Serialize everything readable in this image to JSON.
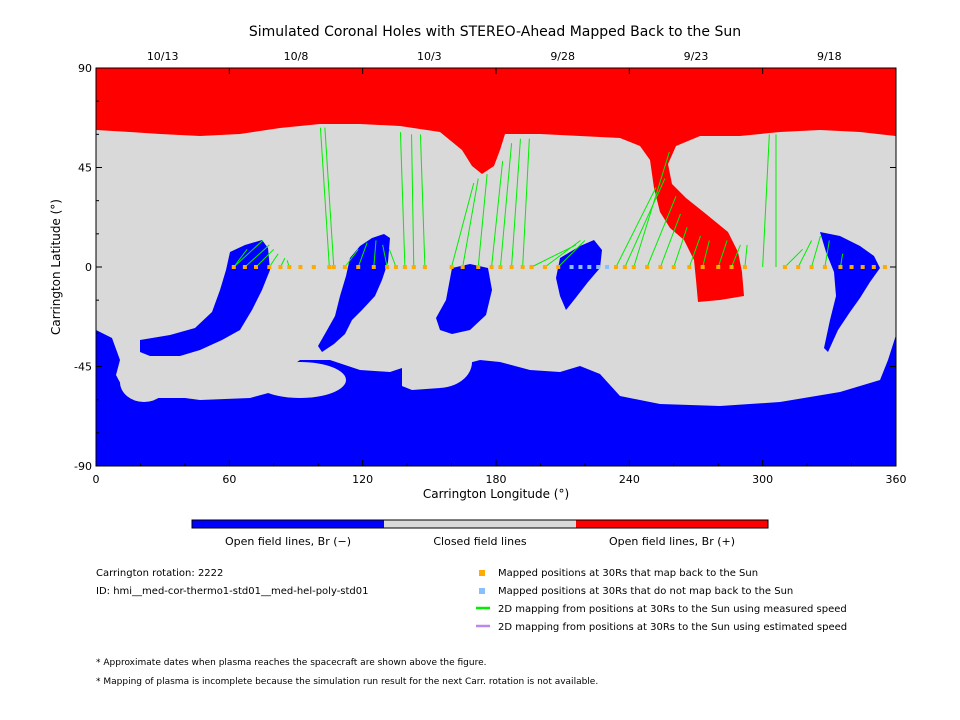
{
  "chart_data": {
    "type": "map",
    "title": "Simulated Coronal Holes with STEREO-Ahead Mapped Back to the Sun",
    "xlabel": "Carrington Longitude (°)",
    "ylabel": "Carrington Latitude (°)",
    "xlim": [
      0,
      360
    ],
    "ylim": [
      -90,
      90
    ],
    "x_ticks": [
      0,
      60,
      120,
      180,
      240,
      300,
      360
    ],
    "y_ticks": [
      -90,
      -45,
      0,
      45,
      90
    ],
    "top_dates": [
      {
        "label": "10/13",
        "lon": 30
      },
      {
        "label": "10/8",
        "lon": 90
      },
      {
        "label": "10/3",
        "lon": 150
      },
      {
        "label": "9/28",
        "lon": 210
      },
      {
        "label": "9/23",
        "lon": 270
      },
      {
        "label": "9/18",
        "lon": 330
      }
    ],
    "colors": {
      "negative_open": "#0000ff",
      "closed": "#d9d9d9",
      "positive_open": "#ff0000",
      "mapped_point": "#ffaa00",
      "unmapped_point": "#88c0ff",
      "measured_line": "#00ee00",
      "estimated_line": "#bb88ee"
    },
    "colorbar": [
      {
        "label": "Open field lines, Br (−)",
        "color": "#0000ff"
      },
      {
        "label": "Closed field lines",
        "color": "#d9d9d9"
      },
      {
        "label": "Open field lines, Br (+)",
        "color": "#ff0000"
      }
    ],
    "mapping_lines": [
      [
        62,
        0,
        68,
        8
      ],
      [
        62,
        0,
        75,
        12
      ],
      [
        67,
        0,
        78,
        10
      ],
      [
        72,
        0,
        80,
        8
      ],
      [
        78,
        0,
        82,
        6
      ],
      [
        83,
        0,
        85,
        4
      ],
      [
        87,
        0,
        86,
        3
      ],
      [
        105,
        0,
        101,
        63
      ],
      [
        107,
        0,
        103,
        63
      ],
      [
        112,
        0,
        118,
        8
      ],
      [
        118,
        0,
        122,
        11
      ],
      [
        125,
        0,
        126,
        12
      ],
      [
        131,
        0,
        129,
        10
      ],
      [
        135,
        0,
        132,
        8
      ],
      [
        139,
        0,
        137,
        61
      ],
      [
        143,
        0,
        142,
        60
      ],
      [
        148,
        0,
        146,
        60
      ],
      [
        160,
        0,
        170,
        38
      ],
      [
        165,
        0,
        172,
        40
      ],
      [
        172,
        0,
        176,
        42
      ],
      [
        178,
        0,
        183,
        48
      ],
      [
        182,
        0,
        187,
        56
      ],
      [
        187,
        0,
        191,
        58
      ],
      [
        192,
        0,
        195,
        58
      ],
      [
        196,
        0,
        216,
        10
      ],
      [
        202,
        0,
        218,
        12
      ],
      [
        208,
        0,
        220,
        12
      ],
      [
        234,
        0,
        252,
        36
      ],
      [
        238,
        0,
        256,
        40
      ],
      [
        242,
        0,
        258,
        52
      ],
      [
        248,
        0,
        261,
        32
      ],
      [
        254,
        0,
        263,
        24
      ],
      [
        260,
        0,
        266,
        18
      ],
      [
        267,
        0,
        272,
        14
      ],
      [
        273,
        0,
        276,
        12
      ],
      [
        280,
        0,
        284,
        12
      ],
      [
        286,
        0,
        290,
        10
      ],
      [
        292,
        0,
        293,
        10
      ],
      [
        300,
        0,
        303,
        60
      ],
      [
        306,
        0,
        306,
        60
      ],
      [
        310,
        0,
        318,
        8
      ],
      [
        316,
        0,
        322,
        12
      ],
      [
        322,
        0,
        326,
        14
      ],
      [
        328,
        0,
        330,
        12
      ],
      [
        335,
        0,
        336,
        6
      ]
    ],
    "mapped_points": [
      62,
      67,
      72,
      78,
      83,
      87,
      92,
      98,
      105,
      107,
      112,
      118,
      125,
      131,
      135,
      139,
      143,
      148,
      160,
      165,
      172,
      178,
      182,
      187,
      192,
      196,
      202,
      208,
      234,
      238,
      242,
      248,
      254,
      260,
      267,
      273,
      280,
      286,
      292,
      310,
      316,
      322,
      328,
      335,
      340,
      345,
      350,
      355
    ],
    "unmapped_points": [
      214,
      218,
      222,
      226,
      230
    ]
  },
  "legend": {
    "mapped": "Mapped positions at 30Rs that map back to the Sun",
    "unmapped": "Mapped positions at 30Rs that do not map back to the Sun",
    "measured": "2D mapping from positions at 30Rs to the Sun using measured speed",
    "estimated": "2D mapping from positions at 30Rs to the Sun using estimated speed"
  },
  "info": {
    "rotation": "Carrington rotation: 2222",
    "id": "ID: hmi__med-cor-thermo1-std01__med-hel-poly-std01"
  },
  "notes": [
    "* Approximate dates when plasma reaches the spacecraft are shown above the figure.",
    "* Mapping of plasma is incomplete because the simulation run result for the next Carr. rotation is not available."
  ]
}
